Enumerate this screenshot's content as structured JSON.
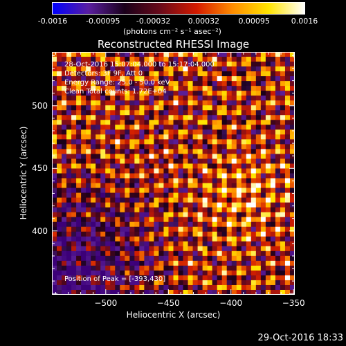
{
  "colorbar": {
    "ticks": [
      "-0.0016",
      "-0.00095",
      "-0.00032",
      "0.00032",
      "0.00095",
      "0.0016"
    ],
    "unit_label": "(photons cm⁻² s⁻¹ asec⁻²)",
    "colors": [
      "#0000ff",
      "#5a1ea0",
      "#1a001a",
      "#6a0a1a",
      "#d41a00",
      "#ff8c00",
      "#ffe400",
      "#ffffff"
    ]
  },
  "chart_data": {
    "type": "heatmap",
    "title": "Reconstructed RHESSI Image",
    "xlabel": "Heliocentric X (arcsec)",
    "ylabel": "Heliocentric Y (arcsec)",
    "xlim": [
      -543,
      -349
    ],
    "ylim": [
      349,
      543
    ],
    "xticks": [
      -500,
      -450,
      -400,
      -350
    ],
    "yticks": [
      400,
      450,
      500
    ],
    "peak_position": [
      -393,
      430
    ]
  },
  "annotations": {
    "time_range": "28-Oct-2016 15:07:04.000 to 15:17:04.000",
    "detectors": "Detectors: 3F 9F, Att 0",
    "energy": "Energy Range: 25.0 - 50.0 keV",
    "method": "Clean     Total counts: 1.72E+04",
    "peak": "Position of Peak = [-393,430]"
  },
  "footer": {
    "timestamp": "29-Oct-2016 18:33"
  }
}
